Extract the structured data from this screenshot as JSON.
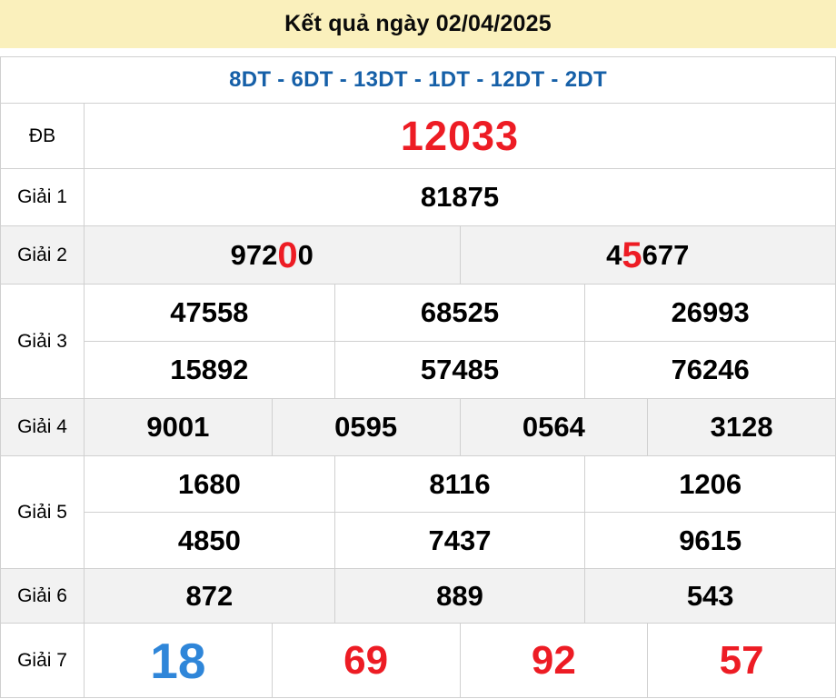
{
  "header": {
    "title": "Kết quả ngày 02/04/2025"
  },
  "subheader": {
    "stations": "8DT - 6DT - 13DT - 1DT - 12DT - 2DT"
  },
  "results": {
    "db": {
      "label": "ĐB",
      "value": "12033"
    },
    "g1": {
      "label": "Giải 1",
      "value": "81875"
    },
    "g2": {
      "label": "Giải 2",
      "v1_pre": "972",
      "v1_hl": "0",
      "v1_post": "0",
      "v2_pre": "4",
      "v2_hl": "5",
      "v2_post": "677"
    },
    "g3": {
      "label": "Giải 3",
      "row1": [
        "47558",
        "68525",
        "26993"
      ],
      "row2": [
        "15892",
        "57485",
        "76246"
      ]
    },
    "g4": {
      "label": "Giải 4",
      "values": [
        "9001",
        "0595",
        "0564",
        "3128"
      ]
    },
    "g5": {
      "label": "Giải 5",
      "row1": [
        "1680",
        "8116",
        "1206"
      ],
      "row2": [
        "4850",
        "7437",
        "9615"
      ]
    },
    "g6": {
      "label": "Giải 6",
      "values": [
        "872",
        "889",
        "543"
      ]
    },
    "g7": {
      "label": "Giải 7",
      "values": [
        "18",
        "69",
        "92",
        "57"
      ]
    }
  },
  "colors": {
    "header_bg": "#FAF0BC",
    "station_blue": "#1660A8",
    "accent_red": "#ED1C24",
    "accent_blue": "#2F86D9",
    "alt_row_bg": "#F2F2F2",
    "border_color": "#D0D0D0"
  }
}
